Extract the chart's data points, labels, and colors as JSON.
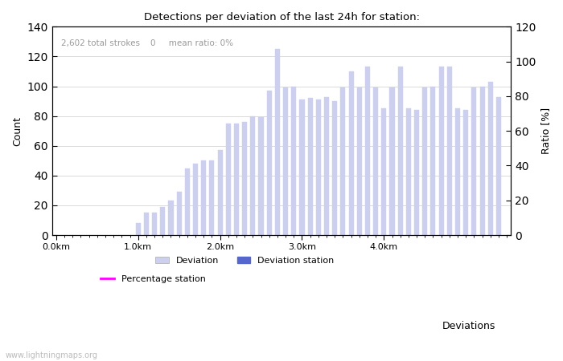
{
  "title": "Detections per deviation of the last 24h for station:",
  "xlabel": "Deviations",
  "ylabel_left": "Count",
  "ylabel_right": "Ratio [%]",
  "annotation": "2,602 total strokes    0     mean ratio: 0%",
  "watermark": "www.lightningmaps.org",
  "bar_color": "#ccd0ee",
  "bar_color_station": "#5566cc",
  "line_color": "#ff00ff",
  "ylim_left": [
    0,
    140
  ],
  "ylim_right": [
    0,
    120
  ],
  "yticks_left": [
    0,
    20,
    40,
    60,
    80,
    100,
    120,
    140
  ],
  "yticks_right": [
    0,
    20,
    40,
    60,
    80,
    100,
    120
  ],
  "xtick_labels": [
    "0.0km",
    "1.0km",
    "2.0km",
    "3.0km",
    "4.0km"
  ],
  "xtick_positions": [
    0,
    10,
    20,
    30,
    40
  ],
  "xlim": [
    -0.5,
    47
  ],
  "bar_data": [
    [
      10,
      8
    ],
    [
      11,
      15
    ],
    [
      12,
      15
    ],
    [
      13,
      19
    ],
    [
      14,
      23
    ],
    [
      15,
      29
    ],
    [
      16,
      45
    ],
    [
      17,
      48
    ],
    [
      18,
      50
    ],
    [
      19,
      50
    ],
    [
      20,
      57
    ],
    [
      21,
      75
    ],
    [
      22,
      75
    ],
    [
      23,
      76
    ],
    [
      24,
      80
    ],
    [
      25,
      79
    ],
    [
      26,
      97
    ],
    [
      27,
      125
    ],
    [
      28,
      99
    ],
    [
      29,
      100
    ],
    [
      30,
      91
    ],
    [
      31,
      92
    ],
    [
      32,
      91
    ],
    [
      33,
      93
    ],
    [
      34,
      90
    ],
    [
      35,
      99
    ],
    [
      36,
      110
    ],
    [
      37,
      99
    ],
    [
      38,
      113
    ],
    [
      39,
      99
    ],
    [
      40,
      85
    ],
    [
      41,
      99
    ],
    [
      42,
      113
    ],
    [
      43,
      85
    ],
    [
      44,
      84
    ],
    [
      45,
      99
    ],
    [
      46,
      100
    ],
    [
      47,
      113
    ],
    [
      48,
      113
    ],
    [
      49,
      85
    ],
    [
      50,
      84
    ],
    [
      51,
      99
    ],
    [
      52,
      100
    ],
    [
      53,
      103
    ],
    [
      54,
      93
    ]
  ],
  "legend_items": [
    "Deviation",
    "Deviation station",
    "Percentage station"
  ]
}
